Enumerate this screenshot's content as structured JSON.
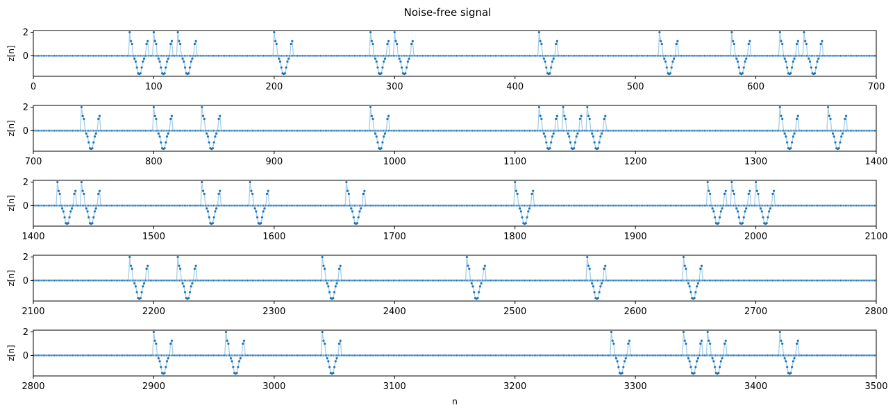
{
  "chart_data": {
    "type": "line",
    "title": "Noise-free signal",
    "xlabel": "n",
    "ylabel": "z[n]",
    "n_total": 3500,
    "ylim": [
      -1.75,
      2.15
    ],
    "yticks": [
      0,
      2
    ],
    "panels": [
      {
        "xlim": [
          0,
          700
        ],
        "xticks": [
          0,
          100,
          200,
          300,
          400,
          500,
          600,
          700
        ]
      },
      {
        "xlim": [
          700,
          1400
        ],
        "xticks": [
          700,
          800,
          900,
          1000,
          1100,
          1200,
          1300,
          1400
        ]
      },
      {
        "xlim": [
          1400,
          2100
        ],
        "xticks": [
          1400,
          1500,
          1600,
          1700,
          1800,
          1900,
          2000,
          2100
        ]
      },
      {
        "xlim": [
          2100,
          2800
        ],
        "xticks": [
          2100,
          2200,
          2300,
          2400,
          2500,
          2600,
          2700,
          2800
        ]
      },
      {
        "xlim": [
          2800,
          3500
        ],
        "xticks": [
          2800,
          2900,
          3000,
          3100,
          3200,
          3300,
          3400,
          3500
        ]
      }
    ],
    "pulse_shape": [
      2.0,
      1.25,
      1.0,
      0.0,
      -0.25,
      -0.5,
      -1.0,
      -1.5,
      -1.55,
      -1.5,
      -1.0,
      -0.5,
      -0.25,
      0.0,
      1.0,
      1.25
    ],
    "pulse_starts": [
      80,
      100,
      120,
      200,
      280,
      300,
      420,
      520,
      580,
      620,
      640,
      740,
      800,
      840,
      980,
      1120,
      1140,
      1160,
      1320,
      1360,
      1420,
      1440,
      1540,
      1580,
      1660,
      1800,
      1960,
      1980,
      2000,
      2180,
      2220,
      2340,
      2460,
      2560,
      2640,
      2900,
      2960,
      3040,
      3280,
      3340,
      3360,
      3420
    ],
    "colors": {
      "marker": "#1f77b4",
      "line": "#a6cde8",
      "axes": "#000000"
    }
  }
}
